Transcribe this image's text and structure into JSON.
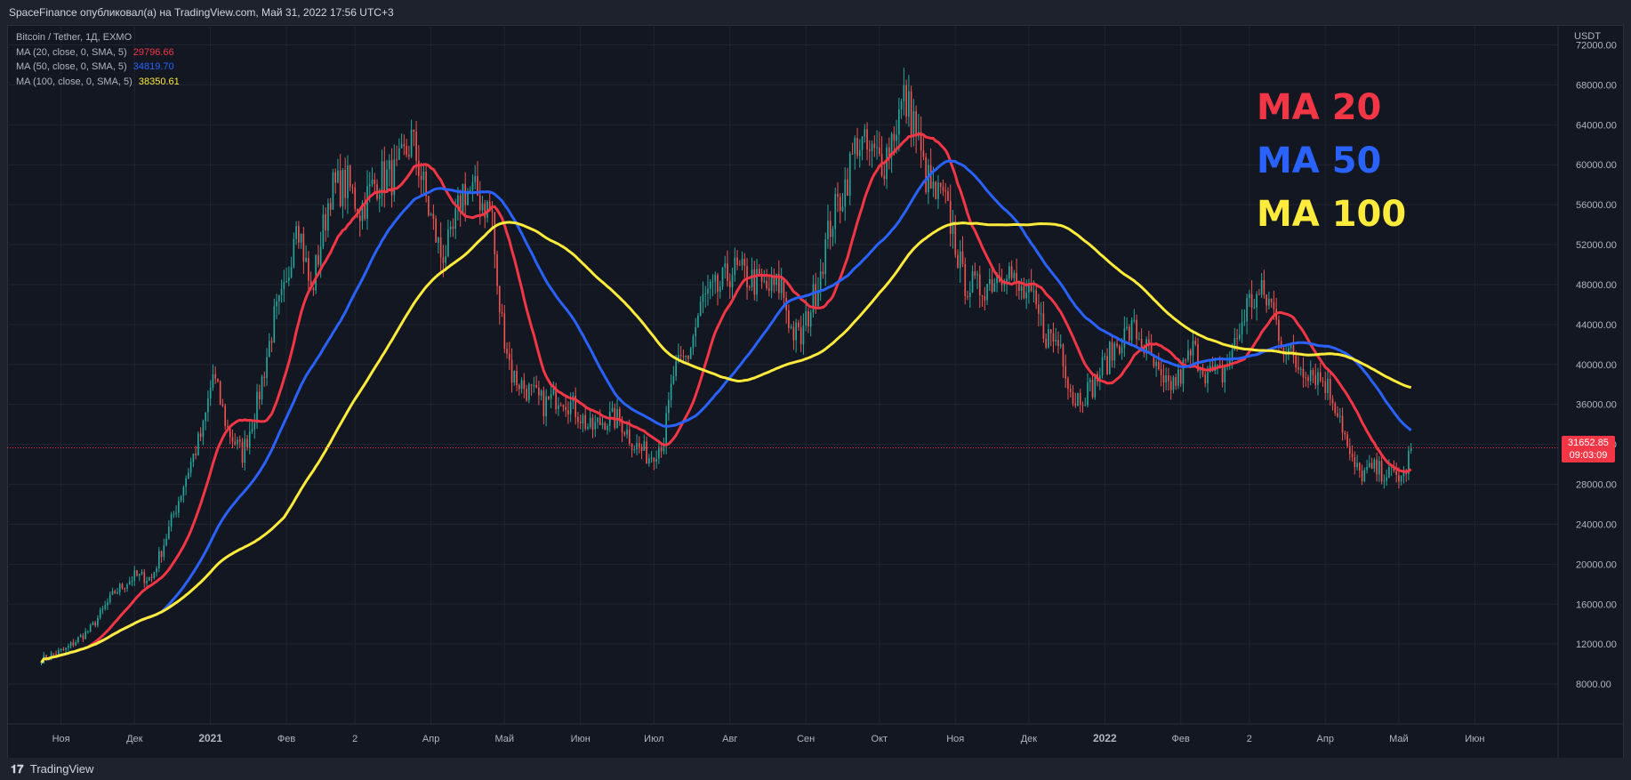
{
  "header": {
    "publisher": "SpaceFinance опубликовал(а) на TradingView.com, Май 31, 2022 17:56 UTC+3"
  },
  "legend": {
    "symbol": "Bitcoin / Tether, 1Д, EXMO",
    "ma20_label": "MA (20, close, 0, SMA, 5)",
    "ma20_value": "29796.66",
    "ma50_label": "MA (50, close, 0, SMA, 5)",
    "ma50_value": "34819.70",
    "ma100_label": "MA (100, close, 0, SMA, 5)",
    "ma100_value": "38350.61"
  },
  "annotations": {
    "ma20": "MA 20",
    "ma50": "MA 50",
    "ma100": "MA 100"
  },
  "price_tag": {
    "price": "31652.85",
    "countdown": "09:03:09"
  },
  "footer": {
    "brand": "TradingView"
  },
  "colors": {
    "background": "#131722",
    "bull": "#26a69a",
    "bear": "#ef5350",
    "ma20": "#f23645",
    "ma50": "#2962ff",
    "ma100": "#ffeb3b",
    "grid": "#1f2430",
    "axis_text": "#b2b5be"
  },
  "chart_data": {
    "type": "line",
    "title": "Bitcoin / Tether, 1Д, EXMO",
    "y_unit": "USDT",
    "ylim": [
      4000,
      74000
    ],
    "y_ticks": [
      8000,
      12000,
      16000,
      20000,
      24000,
      28000,
      32000,
      36000,
      40000,
      44000,
      48000,
      52000,
      56000,
      60000,
      64000,
      68000,
      72000
    ],
    "x_ticks": [
      {
        "label": "Ноя",
        "x": 8
      },
      {
        "label": "Дек",
        "x": 38
      },
      {
        "label": "2021",
        "x": 69
      },
      {
        "label": "Фев",
        "x": 100
      },
      {
        "label": "2",
        "x": 128
      },
      {
        "label": "Апр",
        "x": 159
      },
      {
        "label": "Май",
        "x": 189
      },
      {
        "label": "Июн",
        "x": 220
      },
      {
        "label": "Июл",
        "x": 250
      },
      {
        "label": "Авг",
        "x": 281
      },
      {
        "label": "Сен",
        "x": 312
      },
      {
        "label": "Окт",
        "x": 342
      },
      {
        "label": "Ноя",
        "x": 373
      },
      {
        "label": "Дек",
        "x": 403
      },
      {
        "label": "2022",
        "x": 434
      },
      {
        "label": "Фев",
        "x": 465
      },
      {
        "label": "2",
        "x": 493
      },
      {
        "label": "Апр",
        "x": 524
      },
      {
        "label": "Май",
        "x": 554
      },
      {
        "label": "Июн",
        "x": 585
      }
    ],
    "xlim": [
      -14,
      619
    ],
    "last_price": 31652.85,
    "close_keyframes": [
      [
        0,
        10500
      ],
      [
        10,
        11500
      ],
      [
        20,
        13500
      ],
      [
        30,
        17200
      ],
      [
        38,
        18800
      ],
      [
        45,
        18600
      ],
      [
        52,
        23500
      ],
      [
        60,
        29500
      ],
      [
        66,
        33500
      ],
      [
        70,
        39000
      ],
      [
        76,
        33500
      ],
      [
        82,
        31000
      ],
      [
        88,
        36000
      ],
      [
        95,
        44500
      ],
      [
        100,
        47500
      ],
      [
        104,
        55500
      ],
      [
        110,
        47000
      ],
      [
        118,
        57500
      ],
      [
        125,
        58000
      ],
      [
        130,
        55500
      ],
      [
        137,
        58500
      ],
      [
        145,
        59000
      ],
      [
        151,
        62500
      ],
      [
        154,
        60000
      ],
      [
        158,
        55500
      ],
      [
        163,
        51000
      ],
      [
        167,
        52000
      ],
      [
        172,
        57500
      ],
      [
        178,
        57000
      ],
      [
        184,
        55000
      ],
      [
        186,
        47000
      ],
      [
        192,
        39000
      ],
      [
        198,
        37500
      ],
      [
        205,
        36000
      ],
      [
        212,
        37000
      ],
      [
        218,
        35500
      ],
      [
        224,
        33500
      ],
      [
        230,
        34500
      ],
      [
        236,
        34500
      ],
      [
        242,
        32000
      ],
      [
        248,
        30800
      ],
      [
        254,
        32500
      ],
      [
        258,
        39000
      ],
      [
        264,
        41000
      ],
      [
        270,
        46500
      ],
      [
        276,
        47500
      ],
      [
        282,
        49500
      ],
      [
        290,
        48500
      ],
      [
        296,
        47500
      ],
      [
        302,
        48000
      ],
      [
        306,
        43500
      ],
      [
        310,
        42500
      ],
      [
        316,
        47500
      ],
      [
        322,
        54000
      ],
      [
        328,
        58000
      ],
      [
        333,
        62500
      ],
      [
        338,
        61000
      ],
      [
        344,
        60500
      ],
      [
        348,
        63500
      ],
      [
        352,
        66500
      ],
      [
        356,
        64500
      ],
      [
        360,
        59500
      ],
      [
        364,
        57000
      ],
      [
        368,
        56500
      ],
      [
        372,
        53500
      ],
      [
        376,
        48500
      ],
      [
        382,
        47500
      ],
      [
        388,
        48500
      ],
      [
        394,
        50000
      ],
      [
        398,
        47500
      ],
      [
        404,
        46500
      ],
      [
        410,
        43000
      ],
      [
        416,
        42000
      ],
      [
        421,
        36500
      ],
      [
        428,
        37500
      ],
      [
        434,
        40000
      ],
      [
        440,
        42500
      ],
      [
        446,
        43500
      ],
      [
        452,
        41000
      ],
      [
        458,
        37500
      ],
      [
        464,
        38500
      ],
      [
        470,
        41500
      ],
      [
        476,
        39000
      ],
      [
        482,
        39000
      ],
      [
        488,
        42500
      ],
      [
        492,
        46000
      ],
      [
        498,
        47000
      ],
      [
        502,
        46000
      ],
      [
        506,
        42500
      ],
      [
        512,
        40000
      ],
      [
        518,
        39500
      ],
      [
        524,
        38200
      ],
      [
        530,
        35000
      ],
      [
        534,
        30500
      ],
      [
        538,
        29000
      ],
      [
        544,
        29500
      ],
      [
        550,
        29000
      ],
      [
        556,
        28700
      ],
      [
        559,
        31650
      ]
    ],
    "series": [
      {
        "name": "MA (20, close, 0, SMA, 5)",
        "period": 20,
        "last_value": 29796.66
      },
      {
        "name": "MA (50, close, 0, SMA, 5)",
        "period": 50,
        "last_value": 34819.7
      },
      {
        "name": "MA (100, close, 0, SMA, 5)",
        "period": 100,
        "last_value": 38350.61
      }
    ]
  }
}
